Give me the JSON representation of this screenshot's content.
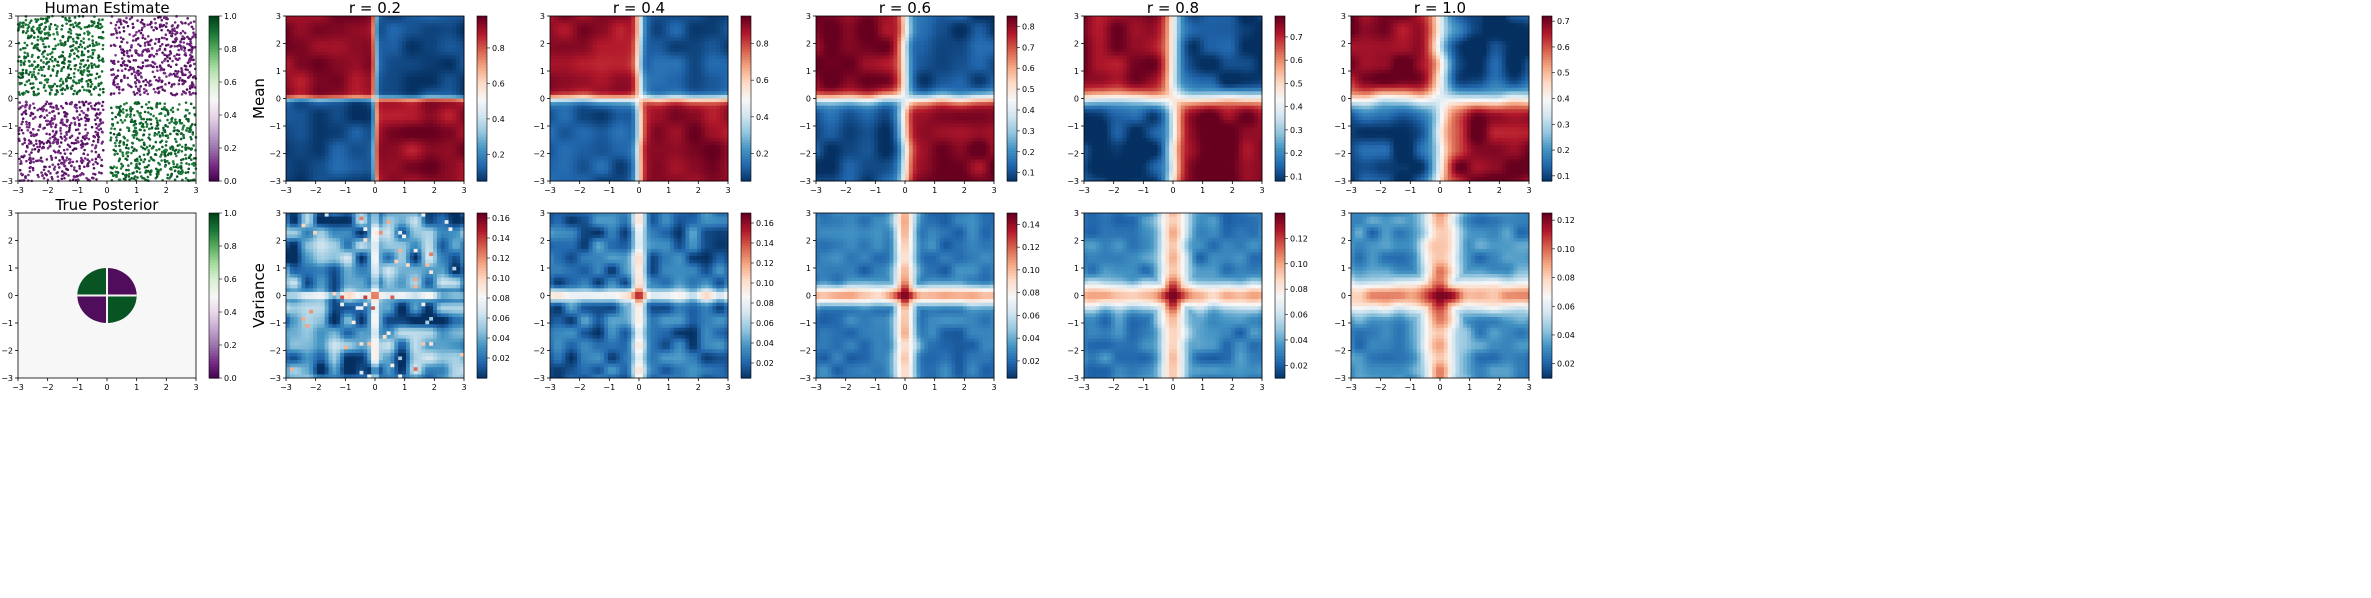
{
  "figure": {
    "layout": "2 rows x 6 columns of heatmap panels with colorbars",
    "rows": [
      {
        "label": ""
      },
      {
        "label": "Mean"
      },
      {
        "label": "Variance"
      }
    ]
  },
  "chart_data": [
    {
      "type": "scatter",
      "title": "Human Estimate",
      "xlim": [
        -3,
        3
      ],
      "ylim": [
        -3,
        3
      ],
      "xticks": [
        "−3",
        "−2",
        "−1",
        "0",
        "1",
        "2",
        "3"
      ],
      "yticks": [
        "3",
        "2",
        "1",
        "0",
        "−1",
        "−2",
        "−3"
      ],
      "colormap": "PRGn",
      "colorbar": {
        "min": 0.0,
        "max": 1.0,
        "ticks": [
          "1.0",
          "0.8",
          "0.6",
          "0.4",
          "0.2",
          "0.0"
        ]
      },
      "description_values": {
        "quadrant_top_left": 1.0,
        "quadrant_top_right": 0.0,
        "quadrant_bottom_left": 0.0,
        "quadrant_bottom_right": 1.0
      },
      "colors": {
        "high": "#1b7837",
        "low": "#762a83"
      }
    },
    {
      "type": "heatmap",
      "title": "r = 0.2",
      "ylabel": "Mean",
      "xlim": [
        -3,
        3
      ],
      "ylim": [
        -3,
        3
      ],
      "xticks": [
        "−3",
        "−2",
        "−1",
        "0",
        "1",
        "2",
        "3"
      ],
      "yticks": [
        "3",
        "2",
        "1",
        "0",
        "−1",
        "−2",
        "−3"
      ],
      "colormap": "RdBu_r",
      "colorbar": {
        "min": 0.05,
        "max": 0.98,
        "ticks": [
          "0.8",
          "0.6",
          "0.4",
          "0.2"
        ],
        "tick_values": [
          0.8,
          0.6,
          0.4,
          0.2
        ]
      },
      "values": {
        "quadrant_high": 0.93,
        "quadrant_low": 0.1,
        "cross_center": 0.5
      },
      "cross_width": 0.15
    },
    {
      "type": "heatmap",
      "title": "r = 0.4",
      "xlim": [
        -3,
        3
      ],
      "ylim": [
        -3,
        3
      ],
      "xticks": [
        "−3",
        "−2",
        "−1",
        "0",
        "1",
        "2",
        "3"
      ],
      "yticks": [
        "3",
        "2",
        "1",
        "0",
        "−1",
        "−2",
        "−3"
      ],
      "colormap": "RdBu_r",
      "colorbar": {
        "min": 0.05,
        "max": 0.95,
        "ticks": [
          "0.8",
          "0.6",
          "0.4",
          "0.2"
        ],
        "tick_values": [
          0.8,
          0.6,
          0.4,
          0.2
        ]
      },
      "values": {
        "quadrant_high": 0.9,
        "quadrant_low": 0.12,
        "cross_center": 0.5
      },
      "cross_width": 0.3
    },
    {
      "type": "heatmap",
      "title": "r = 0.6",
      "xlim": [
        -3,
        3
      ],
      "ylim": [
        -3,
        3
      ],
      "xticks": [
        "−3",
        "−2",
        "−1",
        "0",
        "1",
        "2",
        "3"
      ],
      "yticks": [
        "3",
        "2",
        "1",
        "0",
        "−1",
        "−2",
        "−3"
      ],
      "colormap": "RdBu_r",
      "colorbar": {
        "min": 0.06,
        "max": 0.85,
        "ticks": [
          "0.8",
          "0.7",
          "0.6",
          "0.5",
          "0.4",
          "0.3",
          "0.2",
          "0.1"
        ],
        "tick_values": [
          0.8,
          0.7,
          0.6,
          0.5,
          0.4,
          0.3,
          0.2,
          0.1
        ]
      },
      "values": {
        "quadrant_high": 0.83,
        "quadrant_low": 0.1,
        "cross_center": 0.47
      },
      "cross_width": 0.45
    },
    {
      "type": "heatmap",
      "title": "r = 0.8",
      "xlim": [
        -3,
        3
      ],
      "ylim": [
        -3,
        3
      ],
      "xticks": [
        "−3",
        "−2",
        "−1",
        "0",
        "1",
        "2",
        "3"
      ],
      "yticks": [
        "3",
        "2",
        "1",
        "0",
        "−1",
        "−2",
        "−3"
      ],
      "colormap": "RdBu_r",
      "colorbar": {
        "min": 0.08,
        "max": 0.79,
        "ticks": [
          "0.7",
          "0.6",
          "0.5",
          "0.4",
          "0.3",
          "0.2",
          "0.1"
        ],
        "tick_values": [
          0.7,
          0.6,
          0.5,
          0.4,
          0.3,
          0.2,
          0.1
        ]
      },
      "values": {
        "quadrant_high": 0.77,
        "quadrant_low": 0.1,
        "cross_center": 0.44
      },
      "cross_width": 0.6
    },
    {
      "type": "heatmap",
      "title": "r = 1.0",
      "xlim": [
        -3,
        3
      ],
      "ylim": [
        -3,
        3
      ],
      "xticks": [
        "−3",
        "−2",
        "−1",
        "0",
        "1",
        "2",
        "3"
      ],
      "yticks": [
        "3",
        "2",
        "1",
        "0",
        "−1",
        "−2",
        "−3"
      ],
      "colormap": "RdBu_r",
      "colorbar": {
        "min": 0.08,
        "max": 0.72,
        "ticks": [
          "0.7",
          "0.6",
          "0.5",
          "0.4",
          "0.3",
          "0.2",
          "0.1"
        ],
        "tick_values": [
          0.7,
          0.6,
          0.5,
          0.4,
          0.3,
          0.2,
          0.1
        ]
      },
      "values": {
        "quadrant_high": 0.7,
        "quadrant_low": 0.1,
        "cross_center": 0.42
      },
      "cross_width": 0.75
    },
    {
      "type": "heatmap",
      "title": "True Posterior",
      "xlim": [
        -3,
        3
      ],
      "ylim": [
        -3,
        3
      ],
      "xticks": [
        "−3",
        "−2",
        "−1",
        "0",
        "1",
        "2",
        "3"
      ],
      "yticks": [
        "3",
        "2",
        "1",
        "0",
        "−1",
        "−2",
        "−3"
      ],
      "colormap": "PRGn",
      "colorbar": {
        "min": 0.0,
        "max": 1.0,
        "ticks": [
          "1.0",
          "0.8",
          "0.6",
          "0.4",
          "0.2",
          "0.0"
        ]
      },
      "values": {
        "background": 0.5,
        "disk_radius": 1.0,
        "quadrant_top_left": 1.0,
        "quadrant_top_right": 0.0,
        "quadrant_bottom_left": 0.0,
        "quadrant_bottom_right": 1.0
      }
    },
    {
      "type": "heatmap",
      "title": "",
      "ylabel": "Variance",
      "xlim": [
        -3,
        3
      ],
      "ylim": [
        -3,
        3
      ],
      "xticks": [
        "−3",
        "−2",
        "−1",
        "0",
        "1",
        "2",
        "3"
      ],
      "yticks": [
        "3",
        "2",
        "1",
        "0",
        "−1",
        "−2",
        "−3"
      ],
      "colormap": "RdBu_r",
      "colorbar": {
        "min": 0.0,
        "max": 0.165,
        "ticks": [
          "0.16",
          "0.14",
          "0.12",
          "0.10",
          "0.08",
          "0.06",
          "0.04",
          "0.02"
        ],
        "tick_values": [
          0.16,
          0.14,
          0.12,
          0.1,
          0.08,
          0.06,
          0.04,
          0.02
        ]
      },
      "values": {
        "background": 0.03,
        "cross": 0.08,
        "center": 0.14
      },
      "cross_width": 0.15,
      "noise": "high"
    },
    {
      "type": "heatmap",
      "title": "",
      "xlim": [
        -3,
        3
      ],
      "ylim": [
        -3,
        3
      ],
      "xticks": [
        "−3",
        "−2",
        "−1",
        "0",
        "1",
        "2",
        "3"
      ],
      "yticks": [
        "3",
        "2",
        "1",
        "0",
        "−1",
        "−2",
        "−3"
      ],
      "colormap": "RdBu_r",
      "colorbar": {
        "min": 0.005,
        "max": 0.17,
        "ticks": [
          "0.16",
          "0.14",
          "0.12",
          "0.10",
          "0.08",
          "0.06",
          "0.04",
          "0.02"
        ],
        "tick_values": [
          0.16,
          0.14,
          0.12,
          0.1,
          0.08,
          0.06,
          0.04,
          0.02
        ]
      },
      "values": {
        "background": 0.025,
        "cross": 0.09,
        "center": 0.15
      },
      "cross_width": 0.3,
      "noise": "medium"
    },
    {
      "type": "heatmap",
      "title": "",
      "xlim": [
        -3,
        3
      ],
      "ylim": [
        -3,
        3
      ],
      "xticks": [
        "−3",
        "−2",
        "−1",
        "0",
        "1",
        "2",
        "3"
      ],
      "yticks": [
        "3",
        "2",
        "1",
        "0",
        "−1",
        "−2",
        "−3"
      ],
      "colormap": "RdBu_r",
      "colorbar": {
        "min": 0.005,
        "max": 0.15,
        "ticks": [
          "0.14",
          "0.12",
          "0.10",
          "0.08",
          "0.06",
          "0.04",
          "0.02"
        ],
        "tick_values": [
          0.14,
          0.12,
          0.1,
          0.08,
          0.06,
          0.04,
          0.02
        ]
      },
      "values": {
        "background": 0.025,
        "cross": 0.1,
        "center": 0.145
      },
      "cross_width": 0.45,
      "noise": "low"
    },
    {
      "type": "heatmap",
      "title": "",
      "xlim": [
        -3,
        3
      ],
      "ylim": [
        -3,
        3
      ],
      "xticks": [
        "−3",
        "−2",
        "−1",
        "0",
        "1",
        "2",
        "3"
      ],
      "yticks": [
        "3",
        "2",
        "1",
        "0",
        "−1",
        "−2",
        "−3"
      ],
      "colormap": "RdBu_r",
      "colorbar": {
        "min": 0.01,
        "max": 0.14,
        "ticks": [
          "0.12",
          "0.10",
          "0.08",
          "0.06",
          "0.04",
          "0.02"
        ],
        "tick_values": [
          0.12,
          0.1,
          0.08,
          0.06,
          0.04,
          0.02
        ]
      },
      "values": {
        "background": 0.03,
        "cross": 0.095,
        "center": 0.135
      },
      "cross_width": 0.6,
      "noise": "low"
    },
    {
      "type": "heatmap",
      "title": "",
      "xlim": [
        -3,
        3
      ],
      "ylim": [
        -3,
        3
      ],
      "xticks": [
        "−3",
        "−2",
        "−1",
        "0",
        "1",
        "2",
        "3"
      ],
      "yticks": [
        "3",
        "2",
        "1",
        "0",
        "−1",
        "−2",
        "−3"
      ],
      "colormap": "RdBu_r",
      "colorbar": {
        "min": 0.01,
        "max": 0.125,
        "ticks": [
          "0.12",
          "0.10",
          "0.08",
          "0.06",
          "0.04",
          "0.02"
        ],
        "tick_values": [
          0.12,
          0.1,
          0.08,
          0.06,
          0.04,
          0.02
        ]
      },
      "values": {
        "background": 0.03,
        "cross": 0.09,
        "center": 0.122
      },
      "cross_width": 0.75,
      "noise": "low"
    }
  ]
}
